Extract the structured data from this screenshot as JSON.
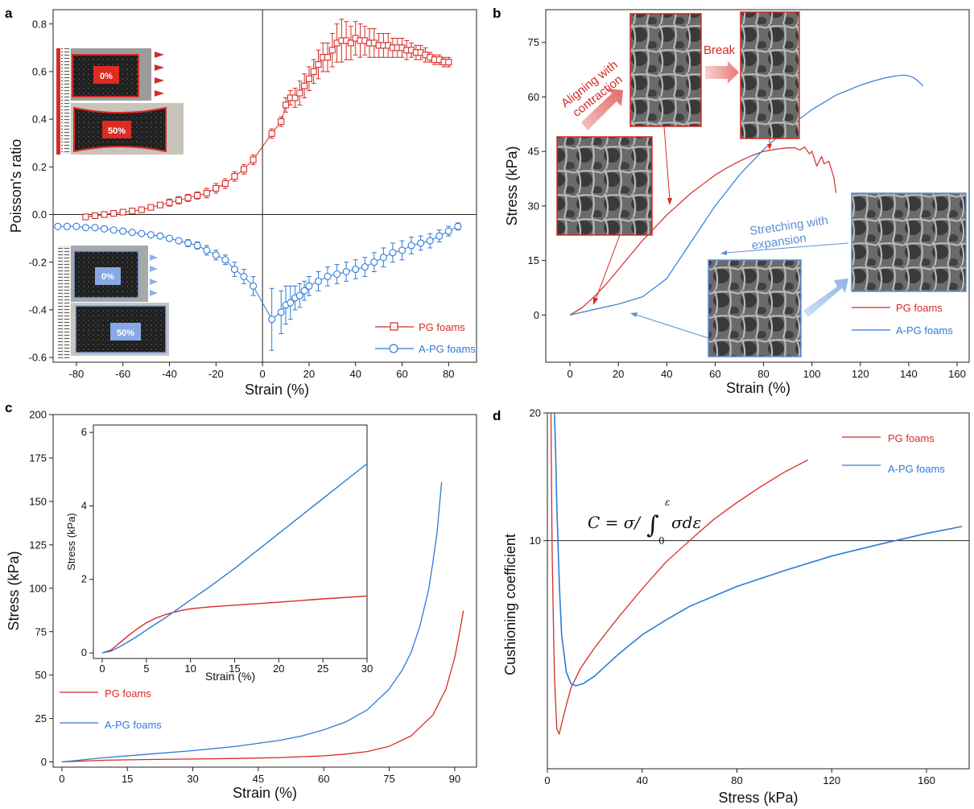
{
  "colors": {
    "pg": "#d62b26",
    "apg": "#2d7bd6",
    "axis": "#222222"
  },
  "chart_data": [
    {
      "panel": "a",
      "type": "line",
      "xlabel": "Strain (%)",
      "ylabel": "Poisson's ratio",
      "xlim": [
        -90,
        92
      ],
      "ylim": [
        -0.62,
        0.86
      ],
      "xticks": [
        -80,
        -60,
        -40,
        -20,
        0,
        20,
        40,
        60,
        80
      ],
      "yticks": [
        -0.6,
        -0.4,
        -0.2,
        0.0,
        0.2,
        0.4,
        0.6,
        0.8
      ],
      "xtick_labels": [
        "-80",
        "-60",
        "-40",
        "-20",
        "0",
        "20",
        "40",
        "60",
        "80"
      ],
      "ytick_labels": [
        "-0.6",
        "-0.4",
        "-0.2",
        "0.0",
        "0.2",
        "0.4",
        "0.6",
        "0.8"
      ],
      "reference_lines": {
        "x": 0,
        "y": 0
      },
      "series": [
        {
          "name": "PG foams",
          "marker": "square",
          "x": [
            -76,
            -72,
            -68,
            -64,
            -60,
            -56,
            -52,
            -48,
            -44,
            -40,
            -36,
            -32,
            -28,
            -24,
            -20,
            -16,
            -12,
            -8,
            -4,
            4,
            8,
            10,
            12,
            14,
            16,
            18,
            20,
            22,
            24,
            26,
            28,
            30,
            32,
            34,
            36,
            38,
            40,
            42,
            44,
            46,
            48,
            50,
            52,
            54,
            56,
            58,
            60,
            62,
            64,
            66,
            68,
            70,
            72,
            74,
            76,
            78,
            80
          ],
          "y": [
            -0.01,
            -0.005,
            0.0,
            0.005,
            0.01,
            0.015,
            0.02,
            0.03,
            0.04,
            0.05,
            0.06,
            0.07,
            0.08,
            0.09,
            0.11,
            0.13,
            0.16,
            0.19,
            0.23,
            0.34,
            0.39,
            0.46,
            0.49,
            0.49,
            0.51,
            0.54,
            0.57,
            0.6,
            0.63,
            0.66,
            0.66,
            0.69,
            0.72,
            0.73,
            0.73,
            0.72,
            0.74,
            0.73,
            0.73,
            0.72,
            0.72,
            0.71,
            0.71,
            0.71,
            0.7,
            0.7,
            0.7,
            0.69,
            0.69,
            0.68,
            0.68,
            0.67,
            0.66,
            0.65,
            0.65,
            0.64,
            0.64
          ],
          "err": [
            0.005,
            0.005,
            0.005,
            0.005,
            0.005,
            0.008,
            0.008,
            0.01,
            0.01,
            0.015,
            0.015,
            0.015,
            0.015,
            0.02,
            0.02,
            0.02,
            0.02,
            0.02,
            0.02,
            0.02,
            0.02,
            0.03,
            0.03,
            0.04,
            0.05,
            0.05,
            0.05,
            0.05,
            0.06,
            0.06,
            0.06,
            0.07,
            0.08,
            0.09,
            0.08,
            0.07,
            0.07,
            0.07,
            0.06,
            0.06,
            0.06,
            0.05,
            0.05,
            0.05,
            0.04,
            0.04,
            0.04,
            0.04,
            0.03,
            0.03,
            0.03,
            0.03,
            0.02,
            0.02,
            0.02,
            0.02,
            0.02
          ]
        },
        {
          "name": "A-PG foams",
          "marker": "circle",
          "x": [
            -88,
            -84,
            -80,
            -76,
            -72,
            -68,
            -64,
            -60,
            -56,
            -52,
            -48,
            -44,
            -40,
            -36,
            -32,
            -28,
            -24,
            -20,
            -16,
            -12,
            -8,
            -4,
            4,
            8,
            10,
            12,
            14,
            16,
            18,
            20,
            24,
            28,
            32,
            36,
            40,
            44,
            48,
            52,
            56,
            60,
            64,
            68,
            72,
            76,
            80,
            84
          ],
          "y": [
            -0.05,
            -0.05,
            -0.05,
            -0.055,
            -0.055,
            -0.06,
            -0.065,
            -0.07,
            -0.075,
            -0.08,
            -0.085,
            -0.09,
            -0.1,
            -0.11,
            -0.12,
            -0.13,
            -0.15,
            -0.17,
            -0.19,
            -0.23,
            -0.26,
            -0.3,
            -0.44,
            -0.41,
            -0.38,
            -0.37,
            -0.35,
            -0.34,
            -0.32,
            -0.3,
            -0.28,
            -0.26,
            -0.25,
            -0.24,
            -0.23,
            -0.22,
            -0.2,
            -0.18,
            -0.16,
            -0.15,
            -0.13,
            -0.12,
            -0.11,
            -0.09,
            -0.07,
            -0.05
          ],
          "err": [
            0.005,
            0.005,
            0.005,
            0.005,
            0.005,
            0.005,
            0.005,
            0.005,
            0.005,
            0.008,
            0.008,
            0.01,
            0.01,
            0.01,
            0.015,
            0.015,
            0.02,
            0.02,
            0.02,
            0.03,
            0.03,
            0.04,
            0.13,
            0.09,
            0.08,
            0.07,
            0.05,
            0.05,
            0.04,
            0.04,
            0.04,
            0.04,
            0.04,
            0.04,
            0.04,
            0.04,
            0.04,
            0.04,
            0.04,
            0.04,
            0.035,
            0.03,
            0.03,
            0.025,
            0.02,
            0.015
          ]
        }
      ],
      "insets": [
        {
          "label": "0%",
          "color": "#d62b26"
        },
        {
          "label": "50%",
          "color": "#d62b26"
        },
        {
          "label": "0%",
          "color": "#5b8fd6"
        },
        {
          "label": "50%",
          "color": "#5b8fd6"
        }
      ]
    },
    {
      "panel": "b",
      "type": "line",
      "xlabel": "Strain (%)",
      "ylabel": "Stress (kPa)",
      "xlim": [
        -10,
        165
      ],
      "ylim": [
        -13,
        84
      ],
      "xticks": [
        0,
        20,
        40,
        60,
        80,
        100,
        120,
        140,
        160
      ],
      "yticks": [
        0,
        15,
        30,
        45,
        60,
        75
      ],
      "xtick_labels": [
        "0",
        "20",
        "40",
        "60",
        "80",
        "100",
        "120",
        "140",
        "160"
      ],
      "ytick_labels": [
        "0",
        "15",
        "30",
        "45",
        "60",
        "75"
      ],
      "annotations": [
        "Aligning with contraction",
        "Break",
        "Stretching with expansion"
      ],
      "series": [
        {
          "name": "PG foams",
          "x": [
            0,
            5,
            10,
            15,
            20,
            25,
            30,
            35,
            40,
            45,
            50,
            55,
            60,
            65,
            70,
            75,
            80,
            85,
            90,
            93,
            95,
            97,
            99,
            100,
            102,
            104,
            105,
            107,
            109,
            110
          ],
          "y": [
            0,
            2,
            5,
            8.5,
            12.5,
            16.5,
            20.5,
            24,
            27.5,
            30.5,
            33.5,
            36,
            38.5,
            40.5,
            42.3,
            43.8,
            45,
            45.6,
            46,
            46,
            45.4,
            46.2,
            44.3,
            45.1,
            41,
            43.6,
            41.6,
            42.3,
            38,
            33.6
          ]
        },
        {
          "name": "A-PG foams",
          "x": [
            0,
            10,
            20,
            30,
            40,
            50,
            60,
            70,
            80,
            90,
            100,
            110,
            120,
            125,
            130,
            135,
            138,
            140,
            142,
            144,
            146
          ],
          "y": [
            0,
            1.5,
            3,
            5,
            10,
            20,
            30,
            38.5,
            45.5,
            51.5,
            56.5,
            60.5,
            63.2,
            64.3,
            65.2,
            65.8,
            66,
            65.8,
            65.3,
            64.3,
            63
          ]
        }
      ]
    },
    {
      "panel": "c",
      "type": "line",
      "xlabel": "Strain (%)",
      "ylabel": "Stress (kPa)",
      "xlim": [
        -2,
        95
      ],
      "ylim": [
        -3,
        200
      ],
      "xticks": [
        0,
        15,
        30,
        45,
        60,
        75,
        90
      ],
      "yticks": [
        0,
        25,
        50,
        75,
        100,
        125,
        150,
        175,
        200
      ],
      "xtick_labels": [
        "0",
        "15",
        "30",
        "45",
        "60",
        "75",
        "90"
      ],
      "ytick_labels": [
        "0",
        "25",
        "50",
        "75",
        "100",
        "125",
        "150",
        "175",
        "200"
      ],
      "series": [
        {
          "name": "PG foams",
          "x": [
            0,
            10,
            20,
            30,
            40,
            50,
            60,
            65,
            70,
            75,
            80,
            85,
            88,
            90,
            91,
            92
          ],
          "y": [
            0,
            1,
            1.4,
            1.7,
            2,
            2.5,
            3.5,
            4.5,
            6,
            9,
            15,
            27,
            42,
            60,
            73,
            87
          ]
        },
        {
          "name": "A-PG foams",
          "x": [
            0,
            10,
            20,
            30,
            40,
            50,
            55,
            60,
            65,
            70,
            75,
            78,
            80,
            82,
            84,
            85,
            86,
            87
          ],
          "y": [
            0,
            2.5,
            4.5,
            6.5,
            9,
            12.5,
            15,
            18.5,
            23,
            30,
            42,
            53,
            63,
            78,
            99,
            115,
            133,
            161
          ]
        }
      ],
      "inset": {
        "xlabel": "Strain (%)",
        "ylabel": "Stress (kPa)",
        "xlim": [
          -1,
          30
        ],
        "ylim": [
          -0.15,
          6.2
        ],
        "xticks": [
          0,
          5,
          10,
          15,
          20,
          25,
          30
        ],
        "yticks": [
          0,
          2,
          4,
          6
        ],
        "xtick_labels": [
          "0",
          "5",
          "10",
          "15",
          "20",
          "25",
          "30"
        ],
        "ytick_labels": [
          "0",
          "2",
          "4",
          "6"
        ],
        "series": [
          {
            "name": "PG foams",
            "x": [
              0,
              1,
              2,
              3,
              4,
              5,
              6,
              7,
              8,
              9,
              10,
              12,
              15,
              20,
              25,
              30
            ],
            "y": [
              0,
              0.08,
              0.28,
              0.48,
              0.66,
              0.82,
              0.94,
              1.03,
              1.1,
              1.16,
              1.2,
              1.25,
              1.3,
              1.38,
              1.47,
              1.55
            ]
          },
          {
            "name": "A-PG foams",
            "x": [
              0,
              1,
              2,
              3,
              4,
              5,
              6,
              7,
              8,
              10,
              12,
              15,
              20,
              25,
              30
            ],
            "y": [
              0,
              0.05,
              0.17,
              0.31,
              0.46,
              0.62,
              0.78,
              0.93,
              1.1,
              1.44,
              1.77,
              2.3,
              3.25,
              4.2,
              5.15
            ]
          }
        ]
      }
    },
    {
      "panel": "d",
      "type": "line",
      "xlabel": "Stress (kPa)",
      "ylabel": "Cushioning coefficient",
      "yscale": "log",
      "xlim": [
        0,
        178
      ],
      "ylim": [
        2.9,
        20
      ],
      "xticks": [
        0,
        40,
        80,
        120,
        160
      ],
      "yticks": [
        10,
        20
      ],
      "xtick_labels": [
        "0",
        "40",
        "80",
        "120",
        "160"
      ],
      "ytick_labels": [
        "10",
        "20"
      ],
      "reference_lines": {
        "y": 10
      },
      "formula": "C = σ/∫₀^ε σdε",
      "series": [
        {
          "name": "PG foams",
          "x": [
            1.5,
            2,
            2.5,
            3,
            3.5,
            4,
            5,
            6,
            8,
            10,
            14,
            20,
            30,
            40,
            50,
            60,
            70,
            80,
            90,
            100,
            110
          ],
          "y": [
            20,
            9.5,
            6.5,
            4.8,
            4.1,
            3.6,
            3.5,
            3.7,
            4.1,
            4.5,
            5,
            5.6,
            6.6,
            7.7,
            8.9,
            10,
            11.2,
            12.3,
            13.4,
            14.5,
            15.5
          ]
        },
        {
          "name": "A-PG foams",
          "x": [
            3,
            3.5,
            4,
            5,
            6,
            8,
            10,
            12,
            15,
            20,
            30,
            40,
            50,
            60,
            80,
            100,
            120,
            140,
            160,
            175
          ],
          "y": [
            20,
            16,
            12,
            8,
            6,
            4.9,
            4.6,
            4.55,
            4.6,
            4.8,
            5.4,
            6,
            6.5,
            7,
            7.8,
            8.5,
            9.2,
            9.8,
            10.4,
            10.8
          ]
        }
      ]
    }
  ]
}
